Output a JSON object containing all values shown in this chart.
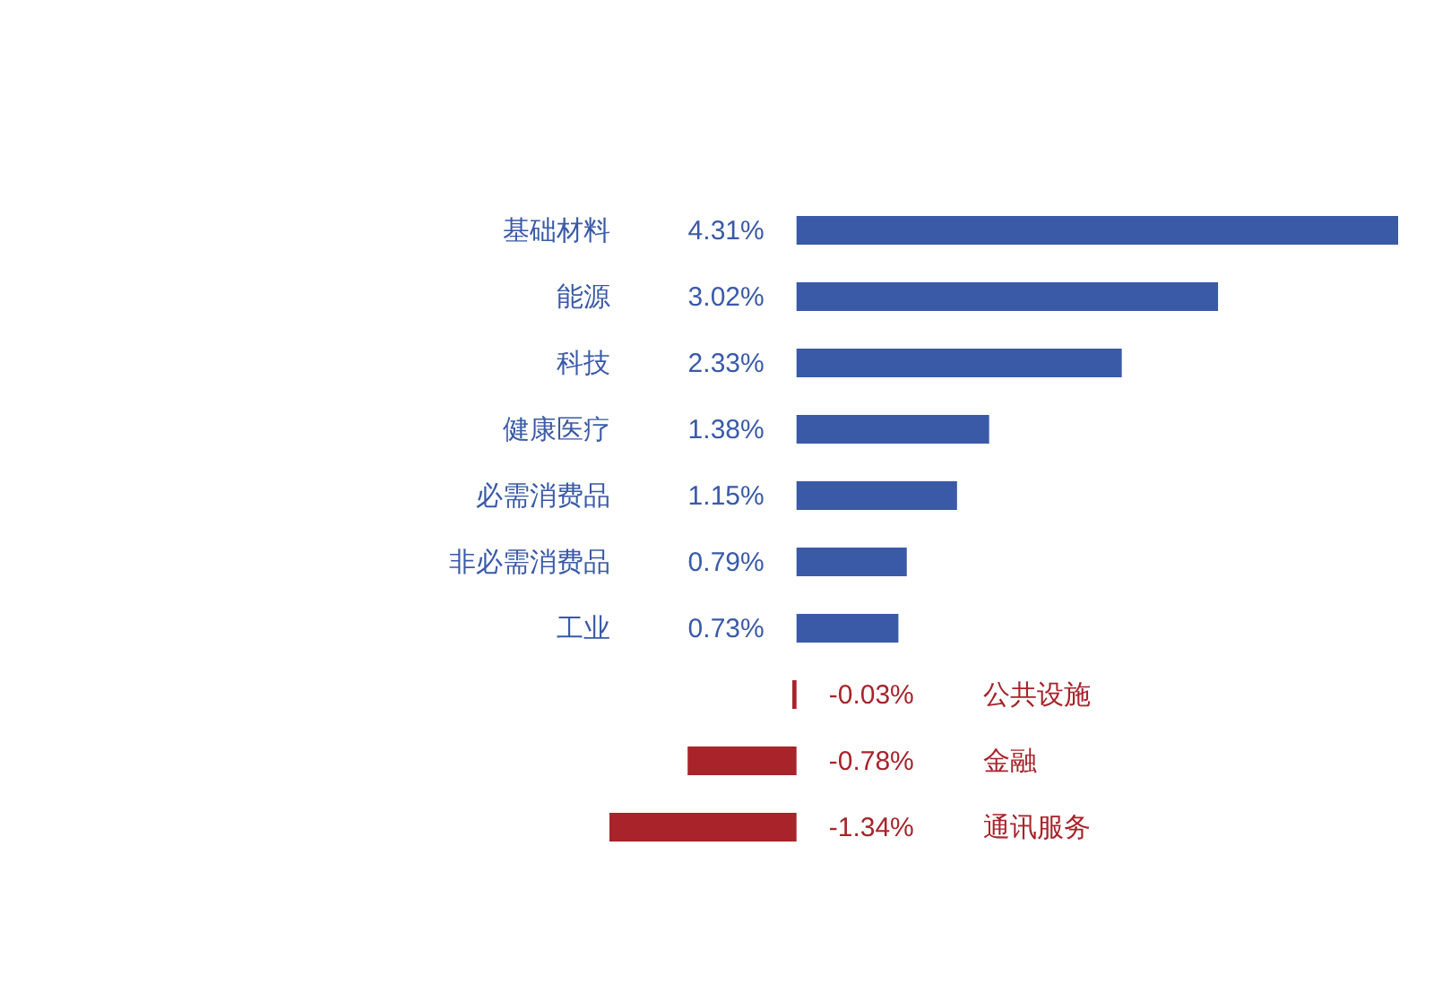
{
  "chart_data": {
    "type": "bar",
    "orientation": "horizontal",
    "categories": [
      "基础材料",
      "能源",
      "科技",
      "健康医疗",
      "必需消费品",
      "非必需消费品",
      "工业",
      "公共设施",
      "金融",
      "通讯服务"
    ],
    "values": [
      4.31,
      3.02,
      2.33,
      1.38,
      1.15,
      0.79,
      0.73,
      -0.03,
      -0.78,
      -1.34
    ],
    "value_labels": [
      "4.31%",
      "3.02%",
      "2.33%",
      "1.38%",
      "1.15%",
      "0.79%",
      "0.73%",
      "-0.03%",
      "-0.78%",
      "-1.34%"
    ],
    "colors": [
      "#3a5aa8",
      "#3a5aa8",
      "#3a5aa8",
      "#3a5aa8",
      "#3a5aa8",
      "#3a5aa8",
      "#3a5aa8",
      "#a8232a",
      "#a8232a",
      "#a8232a"
    ]
  }
}
